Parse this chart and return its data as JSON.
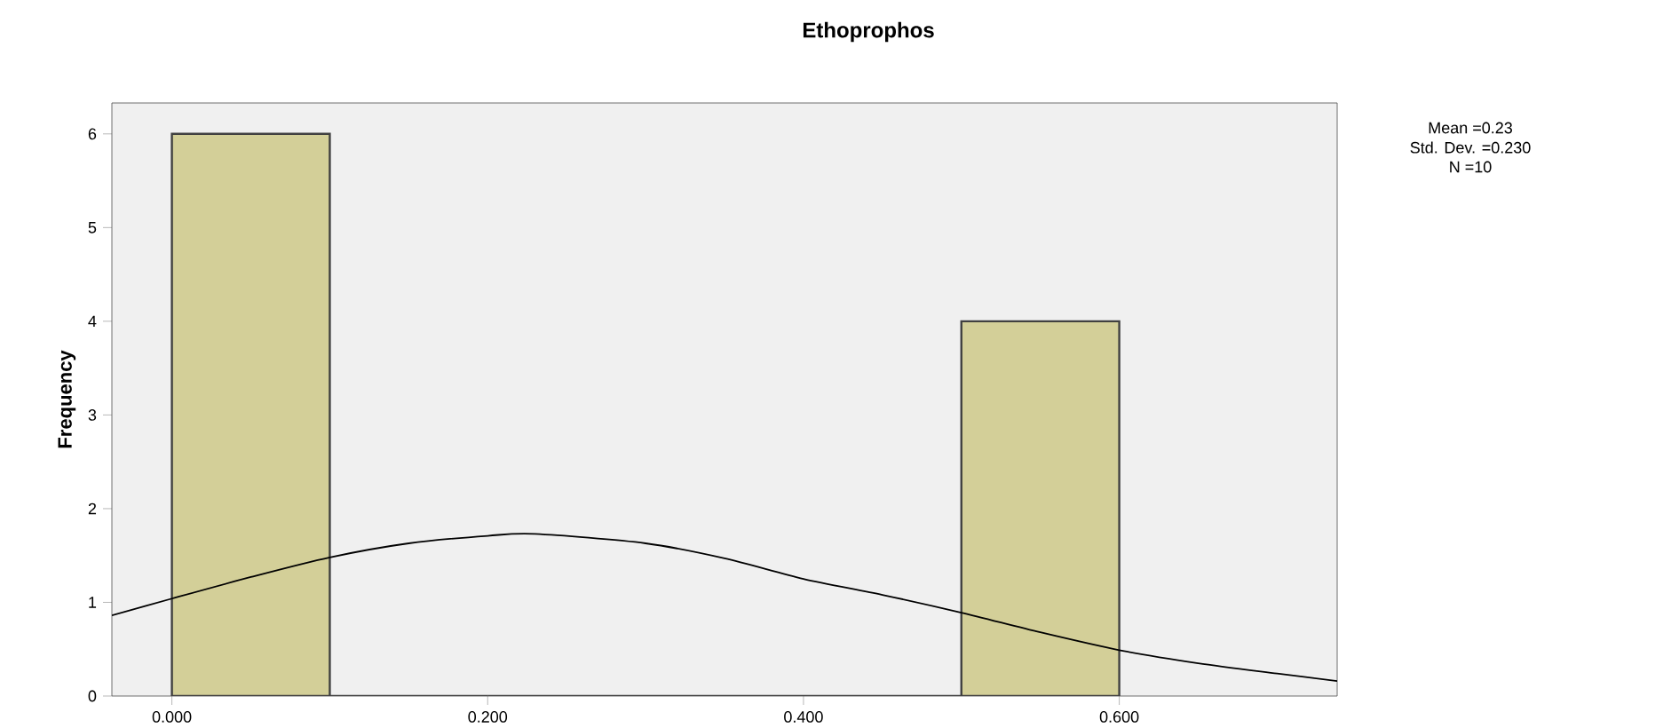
{
  "chart_data": {
    "type": "histogram",
    "title": "Ethoprophos",
    "ylabel": "Frequency",
    "bins": [
      0,
      0.1,
      0.2,
      0.3,
      0.4,
      0.5,
      0.6
    ],
    "values": [
      6,
      0,
      0,
      0,
      0,
      4
    ],
    "color": "#d3cf98",
    "series": [
      {
        "type": "line",
        "color": "#000000",
        "x": [
          -0.038,
          0,
          0.05,
          0.1,
          0.15,
          0.2,
          0.23,
          0.3,
          0.35,
          0.4,
          0.45,
          0.5,
          0.55,
          0.6,
          0.65,
          0.7,
          0.738
        ],
        "values": [
          0.86,
          1.04,
          1.27,
          1.48,
          1.63,
          1.71,
          1.73,
          1.63,
          1.47,
          1.25,
          1.08,
          0.89,
          0.68,
          0.49,
          0.35,
          0.24,
          0.16
        ]
      }
    ],
    "xlim": [
      -0.038,
      0.738
    ],
    "ylim": [
      0,
      6.33
    ],
    "xticks": [
      {
        "value": 0,
        "label": "0.000"
      },
      {
        "value": 0.2,
        "label": "0.200"
      },
      {
        "value": 0.4,
        "label": "0.400"
      },
      {
        "value": 0.6,
        "label": "0.600"
      }
    ],
    "yticks": [
      0,
      1,
      2,
      3,
      4,
      5,
      6
    ],
    "grid": false,
    "annotations": [
      "Mean =0.23",
      "Std. Dev. =0.230",
      "N =10"
    ]
  }
}
